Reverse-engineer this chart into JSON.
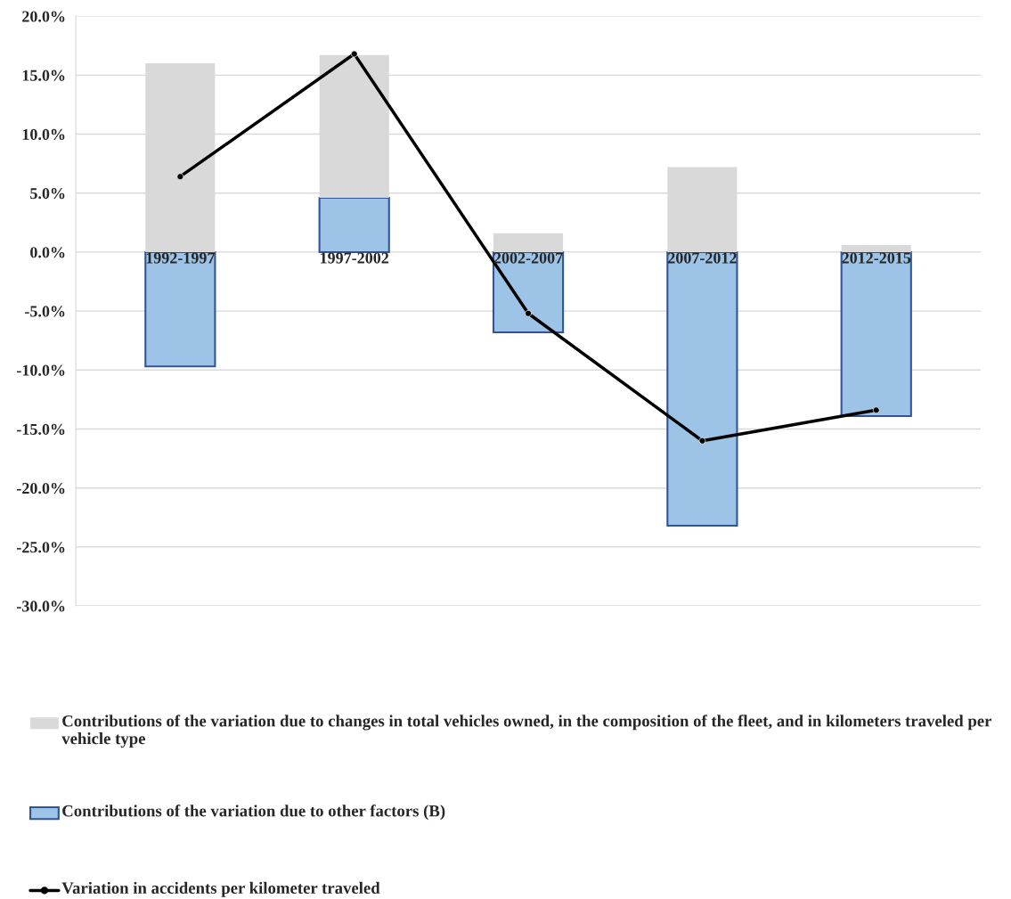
{
  "chart_data": {
    "type": "bar",
    "stacked": true,
    "categories": [
      "1992-1997",
      "1997-2002",
      "2002-2007",
      "2007-2012",
      "2012-2015"
    ],
    "series": [
      {
        "name": "Contributions of the variation due to other factors (B)",
        "color": "#9dc3e6",
        "values": [
          -9.7,
          4.6,
          -6.8,
          -23.2,
          -13.9
        ]
      },
      {
        "name": "Contributions of the variation due to changes in total vehicles owned, in the composition of the fleet, and in kilometers traveled per vehicle type",
        "color": "#d9d9d9",
        "values": [
          16.0,
          12.1,
          1.6,
          7.2,
          0.6
        ]
      },
      {
        "name": "Variation in accidents per kilometer traveled",
        "type": "line",
        "color": "#000000",
        "marker": "circle",
        "line_style": "solid",
        "values": [
          6.4,
          16.8,
          -5.2,
          -16.0,
          -13.4
        ]
      }
    ],
    "ylim": [
      -30,
      20
    ],
    "yticks": [
      {
        "value": -30,
        "label": "-30.0%"
      },
      {
        "value": -25,
        "label": "-25.0%"
      },
      {
        "value": -20,
        "label": "-20.0%"
      },
      {
        "value": -15,
        "label": "-15.0%"
      },
      {
        "value": -10,
        "label": "-10.0%"
      },
      {
        "value": -5,
        "label": "-5.0%"
      },
      {
        "value": 0,
        "label": "0.0%"
      },
      {
        "value": 5,
        "label": "5.0%"
      },
      {
        "value": 10,
        "label": "10.0%"
      },
      {
        "value": 15,
        "label": "15.0%"
      },
      {
        "value": 20,
        "label": "20.0%"
      }
    ],
    "grid": "y",
    "legend": "bottom"
  }
}
